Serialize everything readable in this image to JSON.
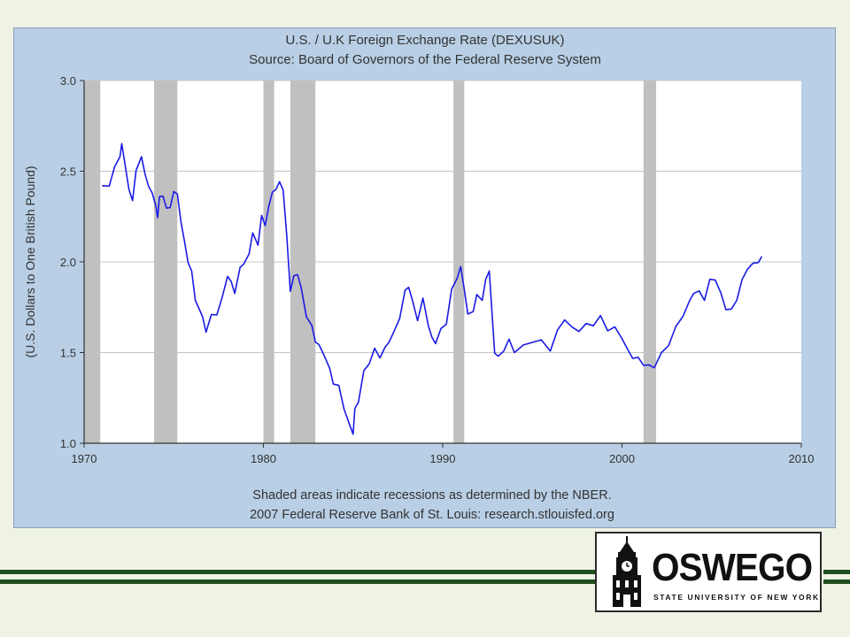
{
  "colors": {
    "series": "#1a1ae6",
    "recession": "#c0c0c0",
    "panel": "#b8cfe5",
    "plot_bg": "#ffffff",
    "rule": "#1f4f1e"
  },
  "chart_data": {
    "type": "line",
    "title": "U.S. / U.K Foreign Exchange Rate (DEXUSUK)",
    "subtitle": "Source: Board of Governors of the Federal Reserve System",
    "xlabel": "",
    "ylabel": "(U.S. Dollars to One British Pound)",
    "xlim": [
      1970,
      2010
    ],
    "ylim": [
      1.0,
      3.0
    ],
    "x_ticks": [
      "1970",
      "1980",
      "1990",
      "2000",
      "2010"
    ],
    "y_ticks": [
      "1.0",
      "1.5",
      "2.0",
      "2.5",
      "3.0"
    ],
    "grid": "horizontal",
    "legend": "none",
    "recessions": [
      [
        1969.9,
        1970.9
      ],
      [
        1973.9,
        1975.2
      ],
      [
        1980.0,
        1980.6
      ],
      [
        1981.5,
        1982.9
      ],
      [
        1990.6,
        1991.2
      ],
      [
        2001.2,
        2001.9
      ]
    ],
    "series": [
      {
        "x": [
          1971.0,
          1971.4,
          1971.7,
          1972.0,
          1972.1,
          1972.3,
          1972.5,
          1972.7,
          1972.9,
          1973.2,
          1973.4,
          1973.6,
          1973.8,
          1974.0,
          1974.1,
          1974.2,
          1974.4,
          1974.6,
          1974.8,
          1975.0,
          1975.2,
          1975.4,
          1975.6,
          1975.8,
          1976.0,
          1976.2,
          1976.4,
          1976.6,
          1976.8,
          1976.9,
          1977.1,
          1977.4,
          1977.7,
          1978.0,
          1978.2,
          1978.4,
          1978.7,
          1978.9,
          1979.2,
          1979.4,
          1979.7,
          1979.9,
          1980.1,
          1980.3,
          1980.5,
          1980.7,
          1980.9,
          1981.1,
          1981.3,
          1981.5,
          1981.7,
          1981.9,
          1982.1,
          1982.4,
          1982.7,
          1982.9,
          1983.1,
          1983.4,
          1983.7,
          1983.9,
          1984.2,
          1984.5,
          1984.8,
          1985.0,
          1985.1,
          1985.3,
          1985.6,
          1985.9,
          1986.2,
          1986.5,
          1986.8,
          1987.0,
          1987.3,
          1987.6,
          1987.9,
          1988.1,
          1988.3,
          1988.6,
          1988.9,
          1989.2,
          1989.4,
          1989.6,
          1989.9,
          1990.2,
          1990.5,
          1990.8,
          1991.0,
          1991.2,
          1991.4,
          1991.7,
          1991.9,
          1992.2,
          1992.4,
          1992.6,
          1992.7,
          1992.9,
          1993.1,
          1993.4,
          1993.7,
          1994.0,
          1994.5,
          1995.0,
          1995.5,
          1996.0,
          1996.4,
          1996.8,
          1997.2,
          1997.6,
          1998.0,
          1998.4,
          1998.8,
          1999.2,
          1999.6,
          2000.0,
          2000.3,
          2000.6,
          2000.9,
          2001.2,
          2001.5,
          2001.8,
          2002.2,
          2002.6,
          2003.0,
          2003.4,
          2003.8,
          2004.0,
          2004.3,
          2004.6,
          2004.9,
          2005.2,
          2005.5,
          2005.8,
          2006.1,
          2006.4,
          2006.7,
          2007.0,
          2007.3,
          2007.6,
          2007.8
        ],
        "values": [
          2.42,
          2.43,
          2.5,
          2.58,
          2.64,
          2.55,
          2.4,
          2.35,
          2.48,
          2.58,
          2.47,
          2.44,
          2.38,
          2.32,
          2.22,
          2.36,
          2.35,
          2.32,
          2.3,
          2.4,
          2.35,
          2.22,
          2.1,
          2.02,
          1.95,
          1.8,
          1.72,
          1.7,
          1.6,
          1.67,
          1.71,
          1.72,
          1.78,
          1.92,
          1.88,
          1.85,
          1.97,
          2.0,
          2.02,
          2.16,
          2.08,
          2.28,
          2.2,
          2.32,
          2.36,
          2.4,
          2.43,
          2.42,
          2.15,
          1.85,
          1.9,
          1.93,
          1.85,
          1.72,
          1.65,
          1.57,
          1.52,
          1.48,
          1.4,
          1.35,
          1.32,
          1.2,
          1.08,
          1.05,
          1.18,
          1.25,
          1.4,
          1.45,
          1.5,
          1.47,
          1.52,
          1.58,
          1.62,
          1.7,
          1.82,
          1.86,
          1.78,
          1.7,
          1.8,
          1.66,
          1.56,
          1.55,
          1.62,
          1.68,
          1.85,
          1.92,
          1.95,
          1.85,
          1.7,
          1.75,
          1.82,
          1.8,
          1.88,
          1.95,
          1.78,
          1.52,
          1.48,
          1.52,
          1.55,
          1.5,
          1.53,
          1.58,
          1.57,
          1.52,
          1.6,
          1.68,
          1.63,
          1.64,
          1.66,
          1.66,
          1.68,
          1.62,
          1.63,
          1.6,
          1.52,
          1.48,
          1.45,
          1.43,
          1.42,
          1.44,
          1.5,
          1.55,
          1.62,
          1.7,
          1.78,
          1.85,
          1.84,
          1.8,
          1.88,
          1.9,
          1.82,
          1.76,
          1.74,
          1.8,
          1.88,
          1.96,
          1.98,
          2.02,
          2.03
        ]
      }
    ],
    "footnote_1": "Shaded areas indicate recessions as determined by the NBER.",
    "footnote_2": "2007 Federal Reserve Bank of St. Louis: research.stlouisfed.org"
  },
  "logo": {
    "word": "OSWEGO",
    "sub": "STATE UNIVERSITY OF NEW YORK",
    "icon": "clock-tower-icon"
  }
}
